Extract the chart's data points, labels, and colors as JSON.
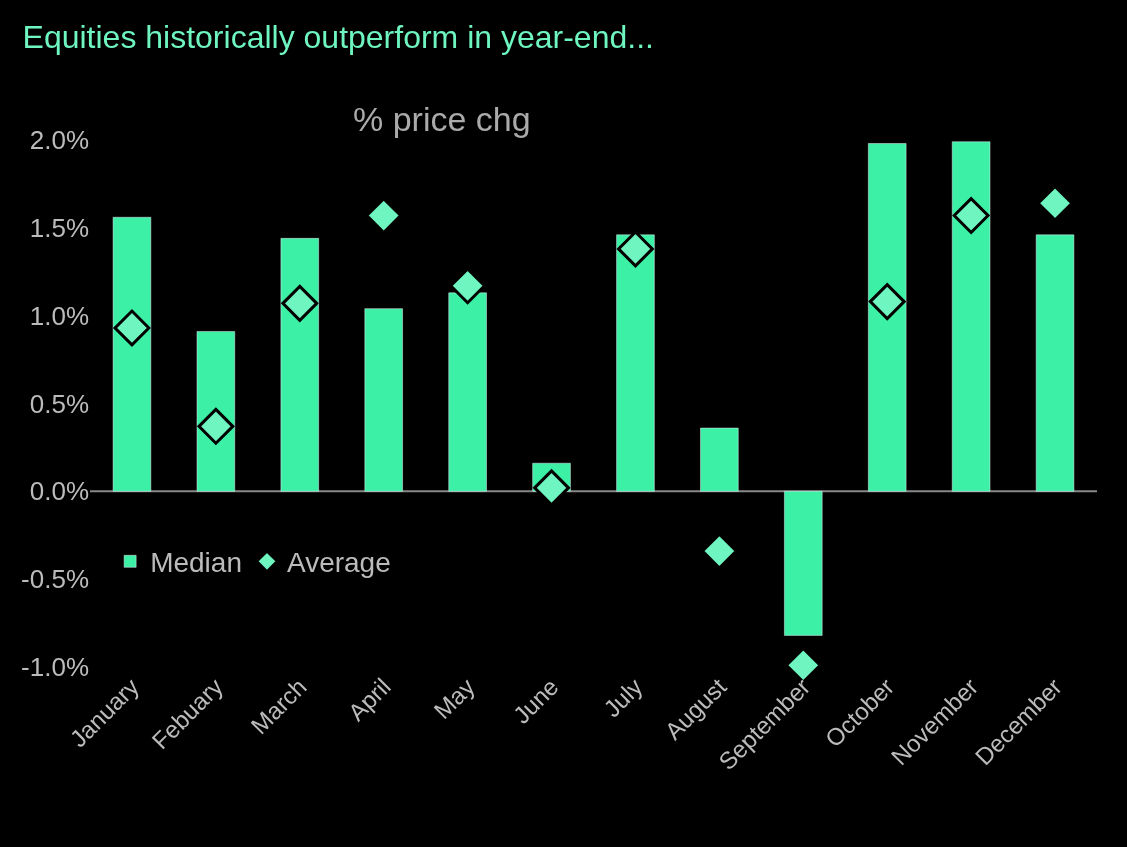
{
  "chart_data": {
    "type": "bar",
    "title": "Equities historically outperform in year-end...",
    "subtitle": "% price chg",
    "categories": [
      "January",
      "Febuary",
      "March",
      "April",
      "May",
      "June",
      "July",
      "August",
      "September",
      "October",
      "November",
      "December"
    ],
    "series": [
      {
        "name": "Median",
        "color": "#3cf0a6",
        "values": [
          1.56,
          0.91,
          1.44,
          1.04,
          1.13,
          0.16,
          1.46,
          0.36,
          -0.82,
          1.98,
          1.99,
          1.46
        ]
      },
      {
        "name": "Average",
        "type": "scatter",
        "color": "#6ef5c0",
        "marker": "diamond",
        "values": [
          0.93,
          0.37,
          1.07,
          1.57,
          1.17,
          0.02,
          1.38,
          -0.34,
          -0.99,
          1.08,
          1.57,
          1.64
        ]
      }
    ],
    "ylim": [
      -1.0,
      2.0
    ],
    "ref_lines": [
      {
        "axis": "y",
        "value": 0,
        "color": "#888888"
      }
    ],
    "yticks": [
      {
        "value": -1.0,
        "label": "-1.0%"
      },
      {
        "value": -0.5,
        "label": "-0.5%"
      },
      {
        "value": 0.0,
        "label": "0.0%"
      },
      {
        "value": 0.5,
        "label": "0.5%"
      },
      {
        "value": 1.0,
        "label": "1.0%"
      },
      {
        "value": 1.5,
        "label": "1.5%"
      },
      {
        "value": 2.0,
        "label": "2.0%"
      }
    ],
    "grid": false,
    "legend": "bottom left"
  }
}
